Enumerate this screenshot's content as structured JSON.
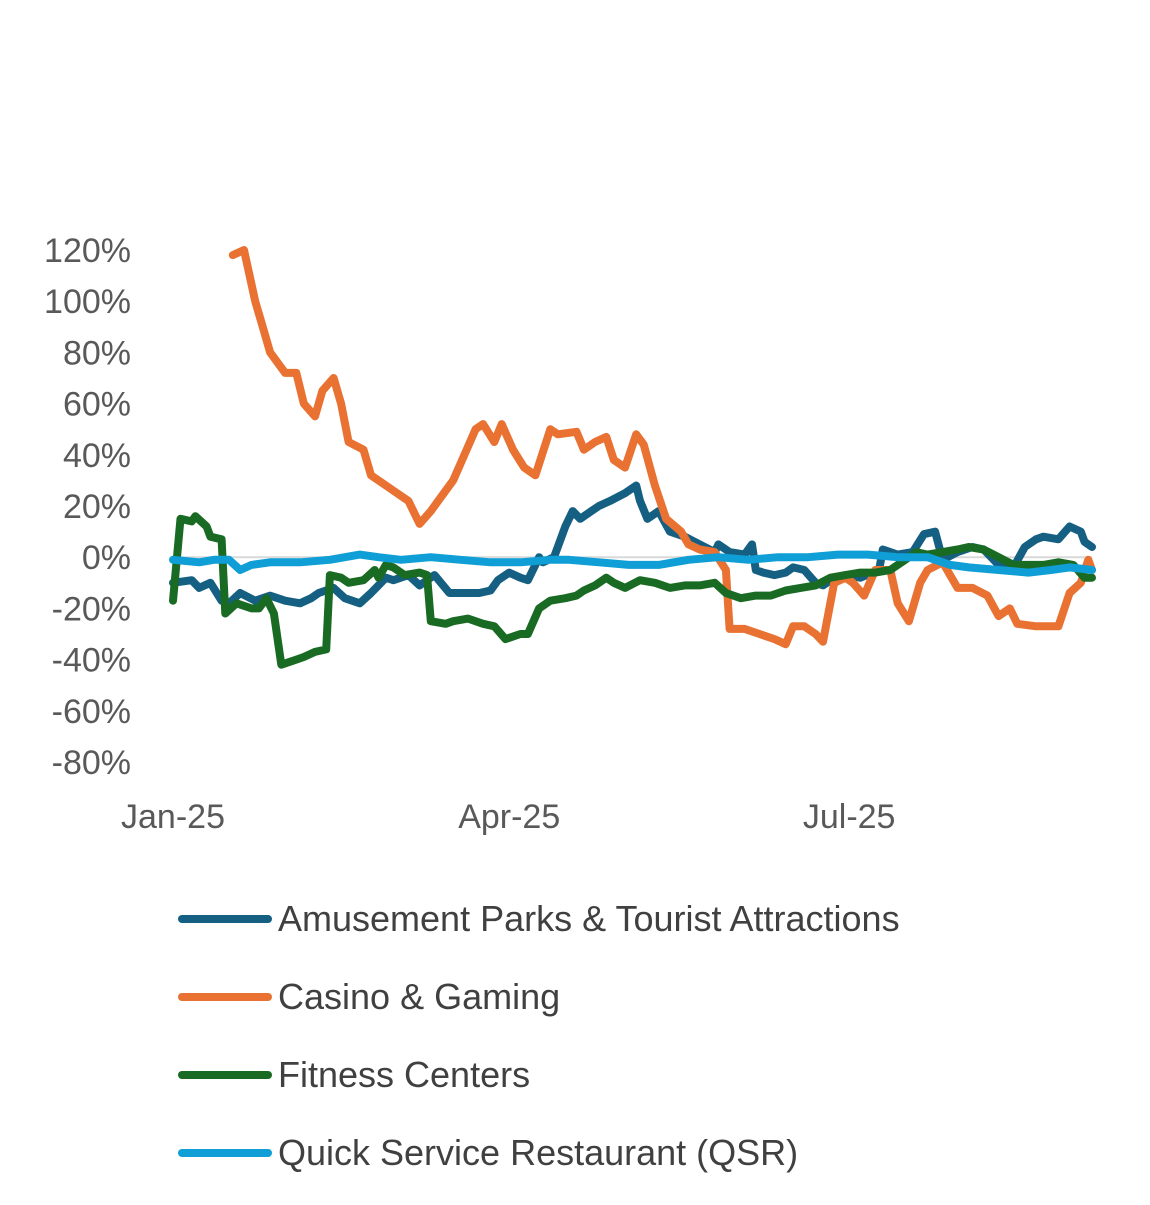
{
  "chart_data": {
    "type": "line",
    "title": "",
    "xlabel": "",
    "ylabel": "",
    "x_unit": "days since 2025-01-01",
    "xlim": [
      0,
      246
    ],
    "ylim": [
      -80,
      120
    ],
    "y_ticks": [
      120,
      100,
      80,
      60,
      40,
      20,
      0,
      -20,
      -40,
      -60,
      -80
    ],
    "y_tick_labels": [
      "120%",
      "100%",
      "80%",
      "60%",
      "40%",
      "20%",
      "0%",
      "-20%",
      "-40%",
      "-60%",
      "-80%"
    ],
    "x_ticks": [
      0,
      90,
      181
    ],
    "x_tick_labels": [
      "Jan-25",
      "Apr-25",
      "Jul-25"
    ],
    "grid": false,
    "zero_line": true,
    "legend_placement": "bottom",
    "series": [
      {
        "name": "Amusement Parks & Tourist Attractions",
        "color": "#156082",
        "points": [
          [
            0,
            -10
          ],
          [
            5,
            -9
          ],
          [
            7,
            -12
          ],
          [
            10,
            -10
          ],
          [
            13,
            -17
          ],
          [
            15,
            -18
          ],
          [
            18,
            -14
          ],
          [
            22,
            -17
          ],
          [
            26,
            -15
          ],
          [
            30,
            -17
          ],
          [
            34,
            -18
          ],
          [
            37,
            -16
          ],
          [
            39,
            -14
          ],
          [
            43,
            -12
          ],
          [
            46,
            -16
          ],
          [
            50,
            -18
          ],
          [
            53,
            -14
          ],
          [
            57,
            -8
          ],
          [
            59,
            -9
          ],
          [
            63,
            -7
          ],
          [
            66,
            -11
          ],
          [
            70,
            -7
          ],
          [
            74,
            -14
          ],
          [
            78,
            -14
          ],
          [
            82,
            -14
          ],
          [
            85,
            -13
          ],
          [
            87,
            -9
          ],
          [
            90,
            -6
          ],
          [
            93,
            -8
          ],
          [
            95,
            -9
          ],
          [
            98,
            0
          ],
          [
            99,
            -2
          ],
          [
            102,
            0
          ],
          [
            105,
            12
          ],
          [
            107,
            18
          ],
          [
            109,
            15
          ],
          [
            112,
            18
          ],
          [
            114,
            20
          ],
          [
            117,
            22
          ],
          [
            121,
            25
          ],
          [
            124,
            28
          ],
          [
            125,
            22
          ],
          [
            127,
            15
          ],
          [
            130,
            18
          ],
          [
            133,
            10
          ],
          [
            137,
            8
          ],
          [
            141,
            5
          ],
          [
            145,
            2
          ],
          [
            146,
            5
          ],
          [
            149,
            2
          ],
          [
            153,
            1
          ],
          [
            155,
            5
          ],
          [
            156,
            -5
          ],
          [
            158,
            -6
          ],
          [
            161,
            -7
          ],
          [
            164,
            -6
          ],
          [
            166,
            -4
          ],
          [
            169,
            -5
          ],
          [
            172,
            -10
          ],
          [
            174,
            -11
          ],
          [
            177,
            -8
          ],
          [
            180,
            -7
          ],
          [
            184,
            -8
          ],
          [
            189,
            -5
          ],
          [
            190,
            3
          ],
          [
            194,
            1
          ],
          [
            198,
            2
          ],
          [
            201,
            9
          ],
          [
            204,
            10
          ],
          [
            206,
            -1
          ],
          [
            210,
            2
          ],
          [
            214,
            4
          ],
          [
            217,
            3
          ],
          [
            221,
            -3
          ],
          [
            225,
            -4
          ],
          [
            228,
            4
          ],
          [
            231,
            7
          ],
          [
            233,
            8
          ],
          [
            237,
            7
          ],
          [
            240,
            12
          ],
          [
            243,
            10
          ],
          [
            244,
            6
          ],
          [
            246,
            4
          ]
        ]
      },
      {
        "name": "Casino & Gaming",
        "color": "#E97132",
        "points": [
          [
            16,
            118
          ],
          [
            19,
            120
          ],
          [
            22,
            100
          ],
          [
            24,
            90
          ],
          [
            26,
            80
          ],
          [
            30,
            72
          ],
          [
            33,
            72
          ],
          [
            35,
            60
          ],
          [
            38,
            55
          ],
          [
            40,
            65
          ],
          [
            43,
            70
          ],
          [
            45,
            60
          ],
          [
            47,
            45
          ],
          [
            51,
            42
          ],
          [
            53,
            32
          ],
          [
            57,
            28
          ],
          [
            61,
            24
          ],
          [
            63,
            22
          ],
          [
            66,
            13
          ],
          [
            69,
            18
          ],
          [
            71,
            22
          ],
          [
            75,
            30
          ],
          [
            78,
            40
          ],
          [
            81,
            50
          ],
          [
            83,
            52
          ],
          [
            86,
            45
          ],
          [
            88,
            52
          ],
          [
            91,
            42
          ],
          [
            94,
            35
          ],
          [
            97,
            32
          ],
          [
            101,
            50
          ],
          [
            103,
            48
          ],
          [
            108,
            49
          ],
          [
            110,
            42
          ],
          [
            113,
            45
          ],
          [
            116,
            47
          ],
          [
            118,
            38
          ],
          [
            121,
            35
          ],
          [
            124,
            48
          ],
          [
            126,
            44
          ],
          [
            129,
            28
          ],
          [
            132,
            15
          ],
          [
            136,
            10
          ],
          [
            138,
            5
          ],
          [
            141,
            3
          ],
          [
            145,
            2
          ],
          [
            148,
            -5
          ],
          [
            149,
            -28
          ],
          [
            153,
            -28
          ],
          [
            157,
            -30
          ],
          [
            161,
            -32
          ],
          [
            164,
            -34
          ],
          [
            166,
            -27
          ],
          [
            169,
            -27
          ],
          [
            172,
            -30
          ],
          [
            174,
            -33
          ],
          [
            177,
            -10
          ],
          [
            180,
            -8
          ],
          [
            182,
            -10
          ],
          [
            185,
            -15
          ],
          [
            188,
            -5
          ],
          [
            192,
            -5
          ],
          [
            194,
            -18
          ],
          [
            197,
            -25
          ],
          [
            200,
            -10
          ],
          [
            202,
            -5
          ],
          [
            206,
            -2
          ],
          [
            210,
            -12
          ],
          [
            214,
            -12
          ],
          [
            218,
            -15
          ],
          [
            221,
            -23
          ],
          [
            224,
            -20
          ],
          [
            226,
            -26
          ],
          [
            231,
            -27
          ],
          [
            235,
            -27
          ],
          [
            237,
            -27
          ],
          [
            240,
            -14
          ],
          [
            243,
            -10
          ],
          [
            245,
            -1
          ],
          [
            246,
            -5
          ]
        ]
      },
      {
        "name": "Fitness Centers",
        "color": "#196B24",
        "points": [
          [
            0,
            -17
          ],
          [
            2,
            15
          ],
          [
            5,
            14
          ],
          [
            6,
            16
          ],
          [
            9,
            12
          ],
          [
            10,
            8
          ],
          [
            13,
            7
          ],
          [
            14,
            -22
          ],
          [
            17,
            -18
          ],
          [
            21,
            -20
          ],
          [
            23,
            -20
          ],
          [
            25,
            -16
          ],
          [
            27,
            -22
          ],
          [
            29,
            -42
          ],
          [
            33,
            -40
          ],
          [
            35,
            -39
          ],
          [
            38,
            -37
          ],
          [
            41,
            -36
          ],
          [
            42,
            -7
          ],
          [
            45,
            -8
          ],
          [
            47,
            -10
          ],
          [
            51,
            -9
          ],
          [
            54,
            -5
          ],
          [
            55,
            -8
          ],
          [
            57,
            -3
          ],
          [
            59,
            -4
          ],
          [
            62,
            -7
          ],
          [
            66,
            -6
          ],
          [
            68,
            -7
          ],
          [
            69,
            -25
          ],
          [
            73,
            -26
          ],
          [
            75,
            -25
          ],
          [
            79,
            -24
          ],
          [
            83,
            -26
          ],
          [
            86,
            -27
          ],
          [
            89,
            -32
          ],
          [
            93,
            -30
          ],
          [
            95,
            -30
          ],
          [
            98,
            -20
          ],
          [
            101,
            -17
          ],
          [
            105,
            -16
          ],
          [
            108,
            -15
          ],
          [
            110,
            -13
          ],
          [
            113,
            -11
          ],
          [
            116,
            -8
          ],
          [
            118,
            -10
          ],
          [
            121,
            -12
          ],
          [
            125,
            -9
          ],
          [
            129,
            -10
          ],
          [
            133,
            -12
          ],
          [
            137,
            -11
          ],
          [
            141,
            -11
          ],
          [
            145,
            -10
          ],
          [
            148,
            -14
          ],
          [
            152,
            -16
          ],
          [
            156,
            -15
          ],
          [
            160,
            -15
          ],
          [
            164,
            -13
          ],
          [
            168,
            -12
          ],
          [
            172,
            -11
          ],
          [
            176,
            -8
          ],
          [
            180,
            -7
          ],
          [
            184,
            -6
          ],
          [
            188,
            -6
          ],
          [
            192,
            -5
          ],
          [
            196,
            -1
          ],
          [
            199,
            2
          ],
          [
            202,
            1
          ],
          [
            206,
            2
          ],
          [
            210,
            3
          ],
          [
            213,
            4
          ],
          [
            217,
            3
          ],
          [
            221,
            0
          ],
          [
            225,
            -3
          ],
          [
            229,
            -3
          ],
          [
            233,
            -3
          ],
          [
            237,
            -2
          ],
          [
            241,
            -3
          ],
          [
            244,
            -8
          ],
          [
            246,
            -8
          ]
        ]
      },
      {
        "name": "Quick Service Restaurant (QSR)",
        "color": "#0F9ED5",
        "points": [
          [
            0,
            -1
          ],
          [
            7,
            -2
          ],
          [
            11,
            -1
          ],
          [
            15,
            -1
          ],
          [
            18,
            -5
          ],
          [
            21,
            -3
          ],
          [
            26,
            -2
          ],
          [
            34,
            -2
          ],
          [
            42,
            -1
          ],
          [
            50,
            1
          ],
          [
            55,
            0
          ],
          [
            61,
            -1
          ],
          [
            69,
            0
          ],
          [
            77,
            -1
          ],
          [
            85,
            -2
          ],
          [
            93,
            -2
          ],
          [
            101,
            -1
          ],
          [
            106,
            -1
          ],
          [
            114,
            -2
          ],
          [
            122,
            -3
          ],
          [
            130,
            -3
          ],
          [
            138,
            -1
          ],
          [
            146,
            0
          ],
          [
            154,
            -1
          ],
          [
            162,
            0
          ],
          [
            170,
            0
          ],
          [
            178,
            1
          ],
          [
            186,
            1
          ],
          [
            194,
            0
          ],
          [
            202,
            0
          ],
          [
            208,
            -3
          ],
          [
            213,
            -4
          ],
          [
            221,
            -5
          ],
          [
            229,
            -6
          ],
          [
            235,
            -5
          ],
          [
            240,
            -4
          ],
          [
            246,
            -5
          ]
        ]
      }
    ]
  }
}
